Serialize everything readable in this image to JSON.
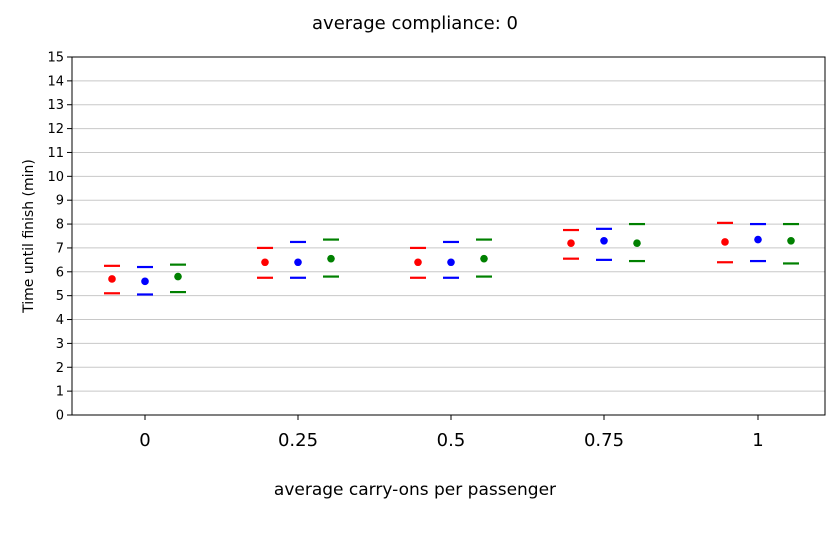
{
  "chart_data": {
    "type": "scatter",
    "title": "average compliance: 0",
    "xlabel": "average carry-ons per passenger",
    "ylabel": "Time until finish (min)",
    "categories": [
      "0",
      "0.25",
      "0.5",
      "0.75",
      "1"
    ],
    "ylim": [
      0,
      15
    ],
    "yticks": [
      0,
      1,
      2,
      3,
      4,
      5,
      6,
      7,
      8,
      9,
      10,
      11,
      12,
      13,
      14,
      15
    ],
    "grid": true,
    "series": [
      {
        "color": "#ff0000",
        "mean": [
          5.7,
          6.4,
          6.4,
          7.2,
          7.25
        ],
        "upper": [
          6.25,
          7.0,
          7.0,
          7.75,
          8.05
        ],
        "lower": [
          5.1,
          5.75,
          5.75,
          6.55,
          6.4
        ]
      },
      {
        "color": "#0000ff",
        "mean": [
          5.6,
          6.4,
          6.4,
          7.3,
          7.35
        ],
        "upper": [
          6.2,
          7.25,
          7.25,
          7.8,
          8.0
        ],
        "lower": [
          5.05,
          5.75,
          5.75,
          6.5,
          6.45
        ]
      },
      {
        "color": "#008000",
        "mean": [
          5.8,
          6.55,
          6.55,
          7.2,
          7.3
        ],
        "upper": [
          6.3,
          7.35,
          7.35,
          8.0,
          8.0
        ],
        "lower": [
          5.15,
          5.8,
          5.8,
          6.45,
          6.35
        ]
      }
    ]
  }
}
